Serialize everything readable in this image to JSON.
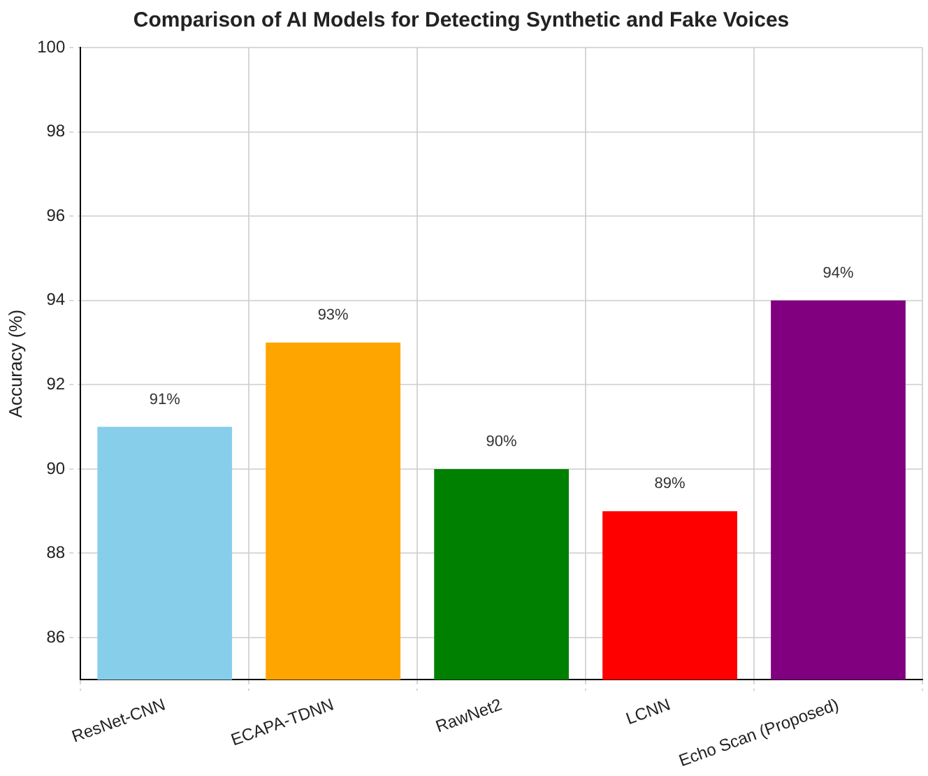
{
  "chart_data": {
    "type": "bar",
    "title": "Comparison of AI Models for Detecting Synthetic and Fake Voices",
    "ylabel": "Accuracy (%)",
    "categories": [
      "ResNet-CNN",
      "ECAPA-TDNN",
      "RawNet2",
      "LCNN",
      "Echo Scan (Proposed)"
    ],
    "values": [
      91,
      93,
      90,
      89,
      94
    ],
    "colors": [
      "#87ceeb",
      "#ffa500",
      "#008000",
      "#ff0000",
      "#800080"
    ],
    "value_labels": [
      "91%",
      "93%",
      "90%",
      "89%",
      "94%"
    ],
    "ylim": [
      85,
      100
    ],
    "yticks": [
      86,
      88,
      90,
      92,
      94,
      96,
      98,
      100
    ],
    "grid": true
  }
}
